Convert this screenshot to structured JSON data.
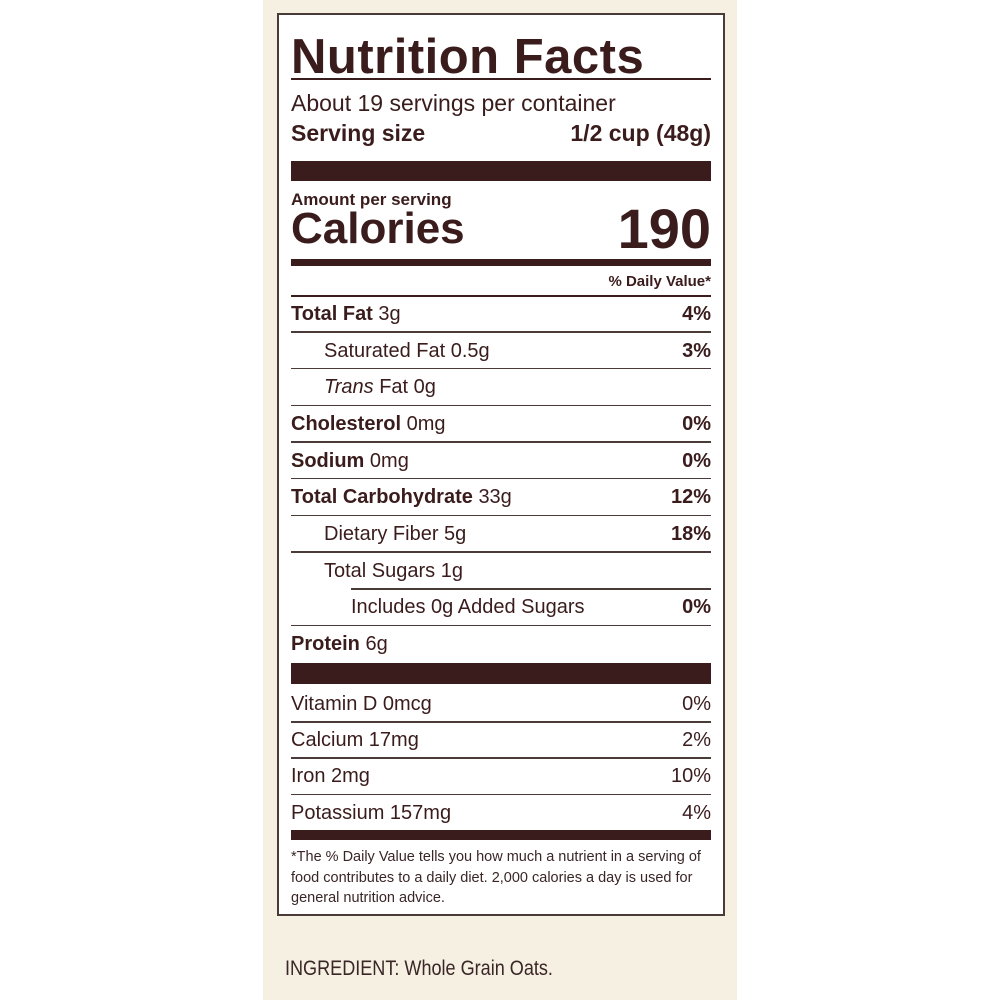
{
  "colors": {
    "text": "#3a1c1c",
    "panel": "#f6f0e3"
  },
  "title": "Nutrition Facts",
  "servings_per_container": "About 19 servings per container",
  "serving_size_label": "Serving size",
  "serving_size_value": "1/2 cup (48g)",
  "amount_per_serving": "Amount per serving",
  "calories_label": "Calories",
  "calories_value": "190",
  "daily_value_header": "% Daily Value*",
  "nutrients": [
    {
      "name": "Total Fat",
      "amount": "3g",
      "dv": "4%"
    },
    {
      "name": "Saturated Fat",
      "amount": "0.5g",
      "dv": "3%"
    },
    {
      "name": "Trans",
      "name_suffix": "Fat",
      "amount": "0g",
      "dv": ""
    },
    {
      "name": "Cholesterol",
      "amount": "0mg",
      "dv": "0%"
    },
    {
      "name": "Sodium",
      "amount": "0mg",
      "dv": "0%"
    },
    {
      "name": "Total Carbohydrate",
      "amount": "33g",
      "dv": "12%"
    },
    {
      "name": "Dietary Fiber",
      "amount": "5g",
      "dv": "18%"
    },
    {
      "name": "Total Sugars",
      "amount": "1g",
      "dv": ""
    },
    {
      "name": "Includes 0g Added Sugars",
      "amount": "",
      "dv": "0%"
    },
    {
      "name": "Protein",
      "amount": "6g",
      "dv": ""
    }
  ],
  "vitamins": [
    {
      "name": "Vitamin D 0mcg",
      "dv": "0%"
    },
    {
      "name": "Calcium 17mg",
      "dv": "2%"
    },
    {
      "name": "Iron 2mg",
      "dv": "10%"
    },
    {
      "name": "Potassium 157mg",
      "dv": "4%"
    }
  ],
  "footnote": "*The % Daily Value tells you how much a nutrient in a serving of food contributes to a daily diet. 2,000 calories a day is used for general nutrition advice.",
  "ingredient": "INGREDIENT: Whole Grain Oats."
}
